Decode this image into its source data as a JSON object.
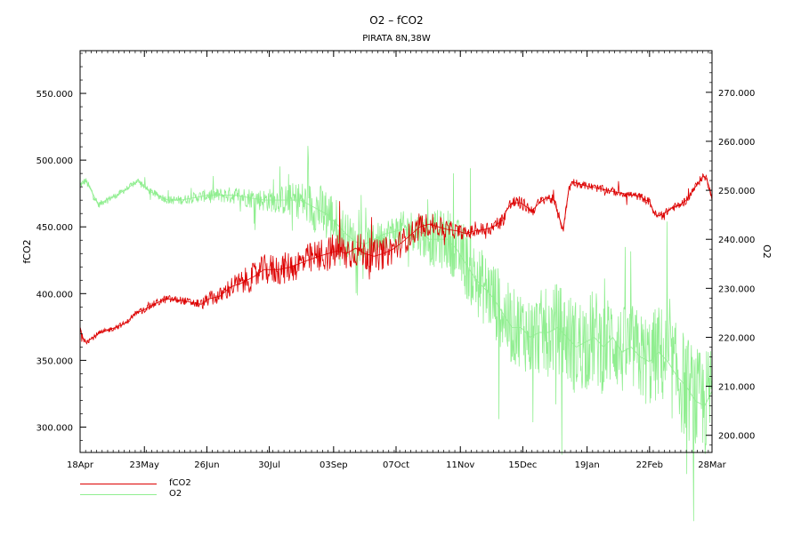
{
  "chart_data": {
    "type": "line",
    "title": "O2 – fCO2",
    "subtitle": "PIRATA 8N,38W",
    "xlabel": "",
    "ylabel_left": "fCO2",
    "ylabel_right": "O2",
    "x_range_days": [
      0,
      344
    ],
    "x_ticks": [
      {
        "label": "18Apr",
        "day": 0
      },
      {
        "label": "23May",
        "day": 35
      },
      {
        "label": "26Jun",
        "day": 69
      },
      {
        "label": "30Jul",
        "day": 103
      },
      {
        "label": "03Sep",
        "day": 138
      },
      {
        "label": "07Oct",
        "day": 172
      },
      {
        "label": "11Nov",
        "day": 207
      },
      {
        "label": "15Dec",
        "day": 241
      },
      {
        "label": "19Jan",
        "day": 276
      },
      {
        "label": "22Feb",
        "day": 310
      },
      {
        "label": "28Mar",
        "day": 344
      }
    ],
    "ylim_left": [
      281,
      582
    ],
    "yticks_left": [
      "300.000",
      "350.000",
      "400.000",
      "450.000",
      "500.000",
      "550.000"
    ],
    "ylim_right": [
      196.5,
      278.5
    ],
    "yticks_right": [
      "200.000",
      "210.000",
      "220.000",
      "230.000",
      "240.000",
      "250.000",
      "260.000",
      "270.000"
    ],
    "series": [
      {
        "name": "fCO2",
        "axis": "left",
        "color": "#dd0000",
        "noise": [
          2,
          2,
          2,
          3,
          3,
          6,
          10,
          12,
          12,
          14,
          14,
          12,
          10,
          8,
          5,
          6,
          5,
          4,
          3,
          3,
          3,
          3,
          3,
          3
        ],
        "points": [
          [
            0,
            375
          ],
          [
            1,
            368
          ],
          [
            3,
            364
          ],
          [
            6,
            366
          ],
          [
            10,
            370
          ],
          [
            18,
            374
          ],
          [
            25,
            378
          ],
          [
            30,
            385
          ],
          [
            35,
            388
          ],
          [
            40,
            392
          ],
          [
            47,
            396
          ],
          [
            55,
            395
          ],
          [
            62,
            393
          ],
          [
            66,
            392
          ],
          [
            70,
            396
          ],
          [
            76,
            398
          ],
          [
            82,
            405
          ],
          [
            88,
            408
          ],
          [
            95,
            413
          ],
          [
            100,
            418
          ],
          [
            108,
            418
          ],
          [
            115,
            420
          ],
          [
            122,
            424
          ],
          [
            130,
            428
          ],
          [
            135,
            430
          ],
          [
            140,
            432
          ],
          [
            145,
            430
          ],
          [
            150,
            434
          ],
          [
            155,
            430
          ],
          [
            160,
            428
          ],
          [
            165,
            430
          ],
          [
            170,
            433
          ],
          [
            175,
            438
          ],
          [
            180,
            444
          ],
          [
            185,
            450
          ],
          [
            190,
            452
          ],
          [
            195,
            450
          ],
          [
            200,
            448
          ],
          [
            205,
            447
          ],
          [
            210,
            445
          ],
          [
            215,
            447
          ],
          [
            220,
            448
          ],
          [
            225,
            450
          ],
          [
            230,
            455
          ],
          [
            232,
            462
          ],
          [
            235,
            468
          ],
          [
            240,
            468
          ],
          [
            243,
            465
          ],
          [
            246,
            462
          ],
          [
            250,
            468
          ],
          [
            254,
            472
          ],
          [
            258,
            470
          ],
          [
            260,
            460
          ],
          [
            262,
            452
          ],
          [
            263,
            448
          ],
          [
            264,
            458
          ],
          [
            266,
            478
          ],
          [
            268,
            484
          ],
          [
            272,
            482
          ],
          [
            278,
            480
          ],
          [
            285,
            478
          ],
          [
            292,
            476
          ],
          [
            300,
            474
          ],
          [
            306,
            472
          ],
          [
            308,
            470
          ],
          [
            310,
            469
          ],
          [
            312,
            462
          ],
          [
            314,
            458
          ],
          [
            318,
            460
          ],
          [
            322,
            464
          ],
          [
            326,
            466
          ],
          [
            330,
            470
          ],
          [
            334,
            478
          ],
          [
            337,
            484
          ],
          [
            339,
            488
          ],
          [
            341,
            486
          ],
          [
            343,
            478
          ],
          [
            344,
            470
          ]
        ]
      },
      {
        "name": "O2",
        "axis": "right",
        "color": "#90ee90",
        "noise": [
          0.8,
          0.6,
          0.6,
          0.8,
          1,
          1.5,
          2,
          2.5,
          4,
          6,
          4,
          3,
          4,
          6,
          7,
          8,
          8,
          9,
          10,
          10,
          9,
          10,
          11,
          11
        ],
        "points": [
          [
            0,
            251
          ],
          [
            3,
            252
          ],
          [
            6,
            250
          ],
          [
            10,
            247
          ],
          [
            14,
            248
          ],
          [
            20,
            249
          ],
          [
            28,
            251
          ],
          [
            32,
            252
          ],
          [
            37,
            250
          ],
          [
            42,
            249
          ],
          [
            48,
            248
          ],
          [
            55,
            248
          ],
          [
            62,
            248.5
          ],
          [
            70,
            249
          ],
          [
            78,
            249
          ],
          [
            85,
            249
          ],
          [
            92,
            248.5
          ],
          [
            100,
            248
          ],
          [
            108,
            248
          ],
          [
            115,
            248
          ],
          [
            120,
            248
          ],
          [
            125,
            247
          ],
          [
            130,
            246
          ],
          [
            135,
            245
          ],
          [
            140,
            243
          ],
          [
            145,
            241
          ],
          [
            150,
            239.5
          ],
          [
            155,
            239
          ],
          [
            160,
            240
          ],
          [
            165,
            241
          ],
          [
            170,
            241.5
          ],
          [
            175,
            242
          ],
          [
            180,
            242
          ],
          [
            185,
            241.5
          ],
          [
            190,
            240
          ],
          [
            195,
            240
          ],
          [
            200,
            240
          ],
          [
            205,
            238
          ],
          [
            210,
            235
          ],
          [
            215,
            232
          ],
          [
            220,
            230
          ],
          [
            225,
            228
          ],
          [
            230,
            225
          ],
          [
            235,
            222
          ],
          [
            240,
            222
          ],
          [
            245,
            220
          ],
          [
            250,
            221
          ],
          [
            255,
            221
          ],
          [
            260,
            222
          ],
          [
            265,
            220
          ],
          [
            270,
            218
          ],
          [
            275,
            219
          ],
          [
            280,
            220
          ],
          [
            285,
            218
          ],
          [
            290,
            220
          ],
          [
            295,
            217
          ],
          [
            300,
            218
          ],
          [
            305,
            216
          ],
          [
            310,
            215
          ],
          [
            315,
            217
          ],
          [
            320,
            215
          ],
          [
            325,
            212
          ],
          [
            330,
            210
          ],
          [
            335,
            207
          ],
          [
            340,
            206
          ],
          [
            344,
            209
          ]
        ]
      }
    ],
    "legend": {
      "placement": "bottom-left",
      "entries": [
        "fCO2",
        "O2"
      ]
    },
    "grid": false
  }
}
